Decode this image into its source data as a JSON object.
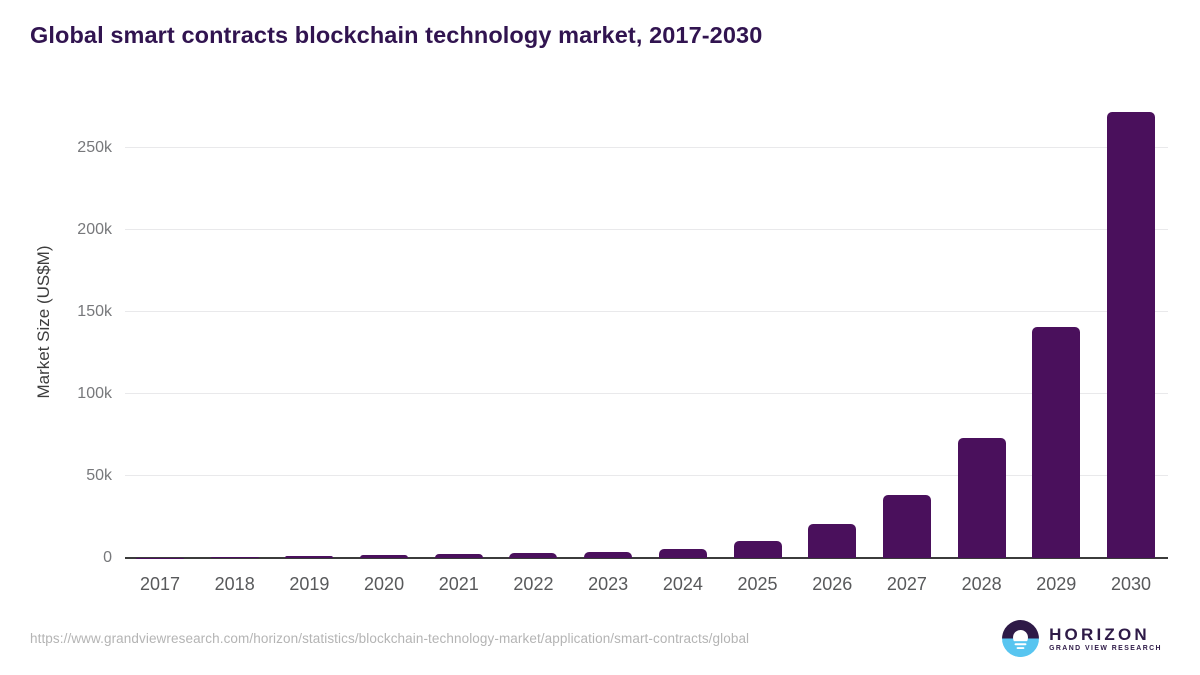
{
  "title": "Global smart contracts blockchain technology market, 2017-2030",
  "chart_data": {
    "type": "bar",
    "title": "Global smart contracts blockchain technology market, 2017-2030",
    "xlabel": "",
    "ylabel": "Market Size (US$M)",
    "categories": [
      "2017",
      "2018",
      "2019",
      "2020",
      "2021",
      "2022",
      "2023",
      "2024",
      "2025",
      "2026",
      "2027",
      "2028",
      "2029",
      "2030"
    ],
    "values": [
      150,
      400,
      1400,
      1650,
      2400,
      3300,
      3750,
      5700,
      10600,
      20500,
      38700,
      73000,
      140600,
      271900
    ],
    "yticks": [
      {
        "value": 0,
        "label": "0"
      },
      {
        "value": 50000,
        "label": "50k"
      },
      {
        "value": 100000,
        "label": "100k"
      },
      {
        "value": 150000,
        "label": "150k"
      },
      {
        "value": 200000,
        "label": "200k"
      },
      {
        "value": 250000,
        "label": "250k"
      }
    ],
    "ylim": [
      0,
      279000
    ],
    "grid": true,
    "legend": false,
    "bar_color": "#4a105c"
  },
  "footer": {
    "source_url": "https://www.grandviewresearch.com/horizon/statistics/blockchain-technology-market/application/smart-contracts/global",
    "logo": {
      "name": "HORIZON",
      "subtitle": "GRAND VIEW RESEARCH"
    }
  },
  "colors": {
    "bar": "#4a105c",
    "title_text": "#311450",
    "axis_line": "#3b3b3b",
    "gridline": "#e9e9eb",
    "tick_text": "#77787b",
    "category_text": "#58595b",
    "source_text": "#b4b4b4",
    "logo_purple": "#2e1a47",
    "logo_blue": "#58c5f0"
  }
}
